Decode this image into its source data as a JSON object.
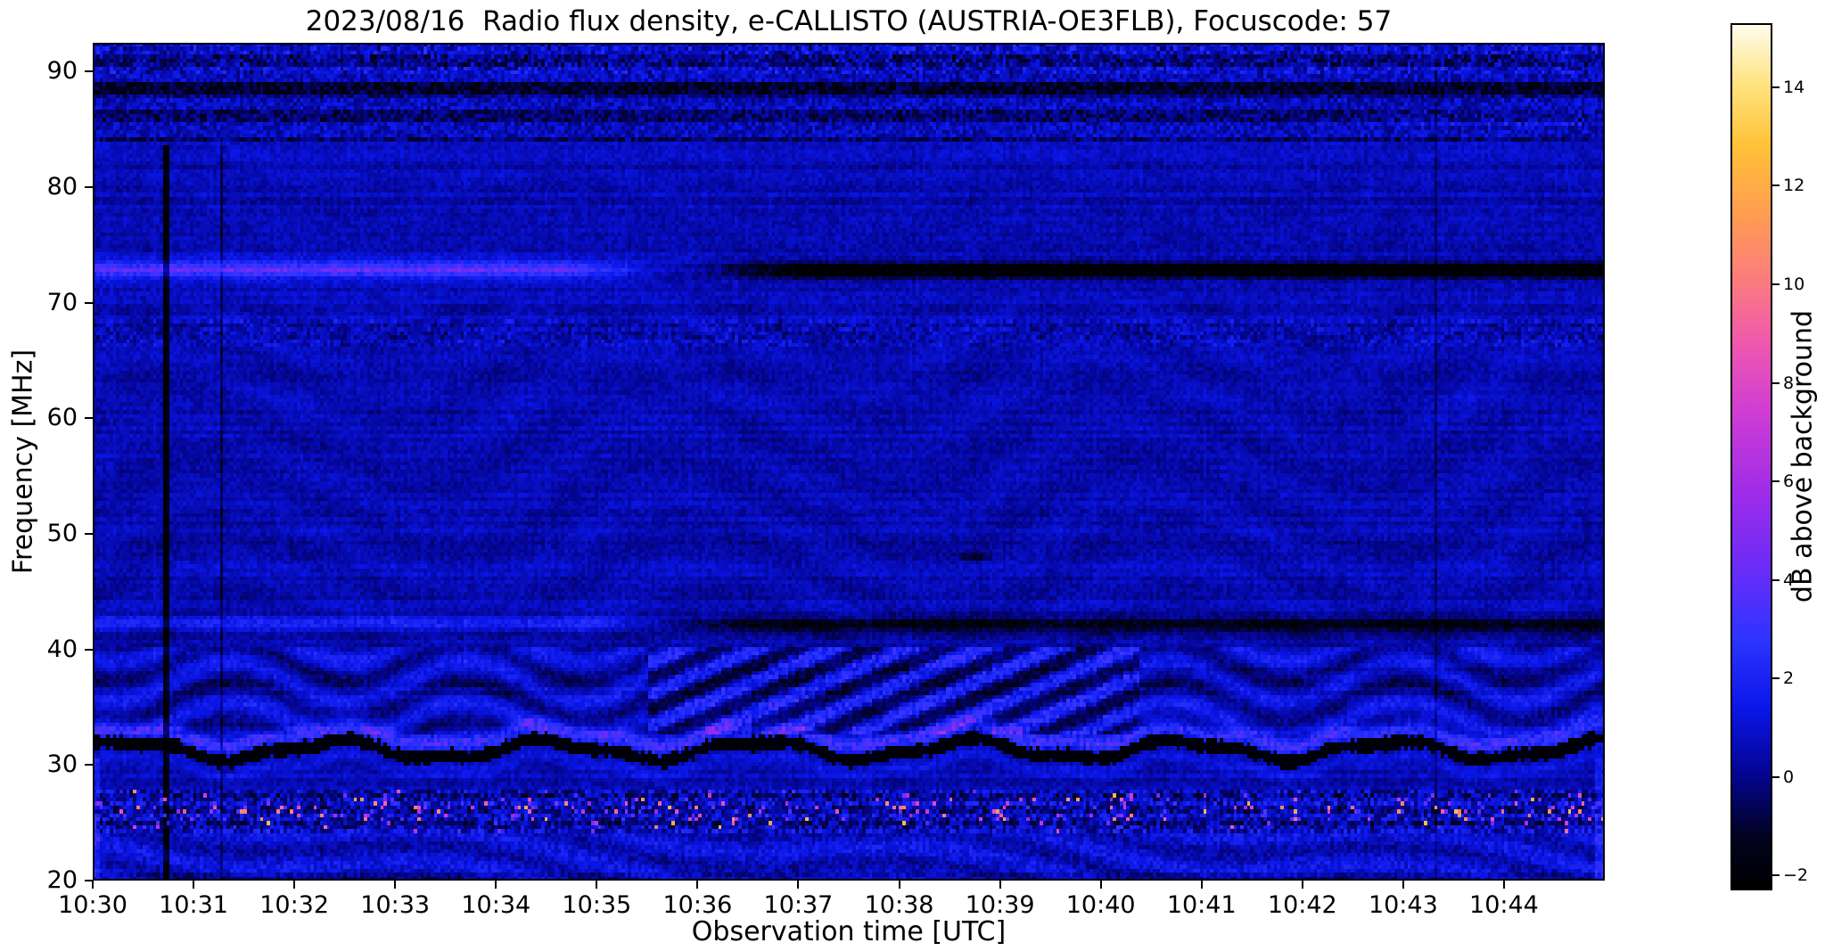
{
  "figure": {
    "background": "#ffffff",
    "frame_color": "#000000"
  },
  "observation": {
    "date": "2023/08/16",
    "instrument": "e-CALLISTO",
    "station": "AUSTRIA-OE3FLB",
    "focuscode": "57"
  },
  "chart_data": {
    "type": "heatmap",
    "title": "2023/08/16  Radio flux density, e-CALLISTO (AUSTRIA-OE3FLB), Focuscode: 57",
    "xlabel": "Observation time [UTC]",
    "ylabel": "Frequency [MHz]",
    "grid": false,
    "x_tick_labels": [
      "10:30",
      "10:31",
      "10:32",
      "10:33",
      "10:34",
      "10:35",
      "10:36",
      "10:37",
      "10:38",
      "10:39",
      "10:40",
      "10:41",
      "10:42",
      "10:43",
      "10:44"
    ],
    "time_span_minutes": 15,
    "y_ticks": [
      90,
      80,
      70,
      60,
      50,
      40,
      30,
      20
    ],
    "freq_range": [
      20,
      92.5
    ],
    "colorbar": {
      "label": "dB above background",
      "vmin": -2.3,
      "vmax": 15.3,
      "tick_values": [
        -2,
        0,
        2,
        4,
        6,
        8,
        10,
        12,
        14
      ],
      "tick_labels": [
        "−2",
        "0",
        "2",
        "4",
        "6",
        "8",
        "10",
        "12",
        "14"
      ],
      "colormap": [
        [
          0.0,
          "#000000"
        ],
        [
          0.06,
          "#02021e"
        ],
        [
          0.13,
          "#04048c"
        ],
        [
          0.21,
          "#0a16e8"
        ],
        [
          0.29,
          "#2e34ff"
        ],
        [
          0.37,
          "#6a2cf8"
        ],
        [
          0.46,
          "#9f2ce8"
        ],
        [
          0.55,
          "#cf3cd4"
        ],
        [
          0.63,
          "#ee58ae"
        ],
        [
          0.7,
          "#fa7a80"
        ],
        [
          0.78,
          "#ff9d50"
        ],
        [
          0.86,
          "#ffc238"
        ],
        [
          0.93,
          "#ffe380"
        ],
        [
          1.0,
          "#fffdf0"
        ]
      ]
    },
    "features": {
      "base": {
        "level": 0.55,
        "noise": 0.5,
        "row_streak": 0.35,
        "scallop_amp": 0.22
      },
      "top_band": {
        "f_min": 84,
        "level": 0.35,
        "noise": 1.0
      },
      "band_67": {
        "f_min": 66.2,
        "f_max": 68.5,
        "noise": 0.8
      },
      "line_73": {
        "freq": 72.85,
        "sigma": 0.45,
        "bright_amp": 2.9,
        "dark_amp": -3.4,
        "bright_end": 4.6,
        "dark_start": 5.9,
        "fade": 1.2
      },
      "line_42": {
        "freq": 42.2,
        "sigma": 0.4,
        "bright_amp": 1.8,
        "dark_amp": -2.0,
        "bright_end": 5.0,
        "dark_start": 5.6,
        "fade": 0.8
      },
      "dark_band_41": {
        "f_min": 40.3,
        "f_max": 41.8,
        "amp": -0.35
      },
      "ripple_zone": {
        "f_min": 32.5,
        "f_max": 40.2,
        "amp": 1.0
      },
      "chevrons": {
        "t_start": 5.5,
        "t_end": 10.4,
        "kt": 8.5,
        "kf": 2.3,
        "amp": 1.5
      },
      "dark_line_38": {
        "freq": 38.3,
        "t_start": 6,
        "amp": -0.6
      },
      "wavy_band": {
        "center": 31.3,
        "wave_amp": 0.75,
        "k1": 3.0,
        "k2": 7.1,
        "half_width": 0.55,
        "dark_value": -2.25,
        "bright_amp": 2.4
      },
      "speckle_band": {
        "f_min": 24.2,
        "f_max": 27.8,
        "center": 26.1,
        "density": 0.1,
        "v_lo": 3,
        "v_hi": 13
      },
      "bottom_band": {
        "f_max": 24.2,
        "level": 0.9,
        "noise": 0.8
      },
      "dark_blob": {
        "t": 8.75,
        "f": 48,
        "amp": -1.8
      },
      "vlines": [
        {
          "t": 0.73,
          "amp": -2.6,
          "f_max": 83.5
        },
        {
          "t": 1.28,
          "amp": -1.2,
          "f_max": 83.5
        },
        {
          "t": 13.33,
          "amp": -0.9,
          "f_max": 90.5
        }
      ],
      "edge_bright": {
        "right_t": 14.9,
        "left_t": 0.08,
        "f_max": 30.5,
        "amp": 1.3
      }
    }
  }
}
